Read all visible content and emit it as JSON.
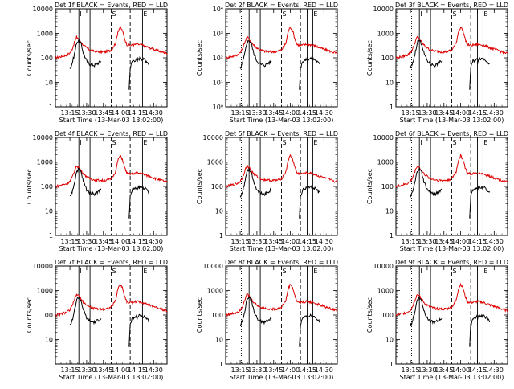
{
  "chart_data": {
    "type": "line",
    "shared": {
      "ylabel": "Counts/sec",
      "xlabel": "Start Time (13-Mar-03 13:02:00)",
      "x_tick_labels": [
        "13:15",
        "13:30",
        "13:45",
        "14:00",
        "14:15",
        "14:30"
      ],
      "x_ticks_min": [
        13,
        28,
        43,
        58,
        73,
        88
      ],
      "xlim_min": [
        0,
        100
      ],
      "ylim": [
        1,
        10000
      ],
      "y_scale": "log",
      "colors": {
        "events": "#000000",
        "lld": "#dd0000"
      },
      "marker_letters": [
        "I",
        "S",
        "E"
      ],
      "vlines": [
        {
          "x": 14,
          "style": "dotted"
        },
        {
          "x": 21,
          "style": "solid"
        },
        {
          "x": 31,
          "style": "solid"
        },
        {
          "x": 50,
          "style": "dashed"
        },
        {
          "x": 67,
          "style": "dashed"
        },
        {
          "x": 73,
          "style": "solid"
        },
        {
          "x": 78,
          "style": "solid"
        }
      ],
      "letter_positions": {
        "I": 21,
        "S": 50,
        "E": 78
      }
    },
    "panels": [
      {
        "title": "Det 1f BLACK = Events, RED = LLD",
        "y_tick_labels": [
          "1",
          "10",
          "100",
          "1000",
          "10000"
        ],
        "y_tick_style": "plain"
      },
      {
        "title": "Det 2f BLACK = Events, RED = LLD",
        "y_tick_labels": [
          "10⁰",
          "10¹",
          "10²",
          "10³",
          "10⁴"
        ],
        "y_tick_style": "power"
      },
      {
        "title": "Det 3f BLACK = Events, RED = LLD",
        "y_tick_labels": [
          "1",
          "10",
          "100",
          "1000",
          "10000"
        ],
        "y_tick_style": "plain"
      },
      {
        "title": "Det 4f BLACK = Events, RED = LLD",
        "y_tick_labels": [
          "1",
          "10",
          "100",
          "1000",
          "10000"
        ],
        "y_tick_style": "plain"
      },
      {
        "title": "Det 5f BLACK = Events, RED = LLD",
        "y_tick_labels": [
          "1",
          "10",
          "100",
          "1000",
          "10000"
        ],
        "y_tick_style": "plain"
      },
      {
        "title": "Det 6f BLACK = Events, RED = LLD",
        "y_tick_labels": [
          "1",
          "10",
          "100",
          "1000",
          "10000"
        ],
        "y_tick_style": "plain"
      },
      {
        "title": "Det 7f BLACK = Events, RED = LLD",
        "y_tick_labels": [
          "1",
          "10",
          "100",
          "1000",
          "10000"
        ],
        "y_tick_style": "plain"
      },
      {
        "title": "Det 8f BLACK = Events, RED = LLD",
        "y_tick_labels": [
          "1",
          "10",
          "100",
          "1000",
          "10000"
        ],
        "y_tick_style": "plain"
      },
      {
        "title": "Det 9f BLACK = Events, RED = LLD",
        "y_tick_labels": [
          "1",
          "10",
          "100",
          "1000",
          "10000"
        ],
        "y_tick_style": "plain"
      }
    ],
    "series": [
      {
        "name": "LLD",
        "color": "#dd0000",
        "x": [
          0,
          6,
          10,
          13,
          15,
          17,
          19,
          21,
          23,
          26,
          30,
          34,
          38,
          42,
          46,
          50,
          54,
          56,
          58,
          60,
          62,
          64,
          67,
          70,
          73,
          78,
          84,
          90,
          100
        ],
        "y": [
          100,
          115,
          130,
          160,
          230,
          420,
          700,
          600,
          430,
          300,
          220,
          190,
          180,
          175,
          180,
          210,
          400,
          1200,
          1800,
          1300,
          600,
          350,
          320,
          340,
          360,
          330,
          260,
          210,
          150
        ]
      },
      {
        "name": "Events",
        "color": "#000000",
        "segments": [
          {
            "x": [
              13,
              14,
              15,
              17,
              19,
              21,
              23,
              25,
              28,
              31,
              35,
              38,
              41
            ],
            "y": [
              40,
              45,
              60,
              140,
              420,
              520,
              380,
              160,
              75,
              55,
              50,
              60,
              75
            ]
          },
          {
            "x": [
              66,
              67,
              69,
              71,
              73
            ],
            "y": [
              5,
              40,
              75,
              80,
              85
            ]
          },
          {
            "x": [
              73,
              74,
              76,
              78,
              80,
              82,
              84
            ],
            "y": [
              60,
              90,
              95,
              90,
              85,
              70,
              55
            ]
          }
        ]
      }
    ]
  }
}
